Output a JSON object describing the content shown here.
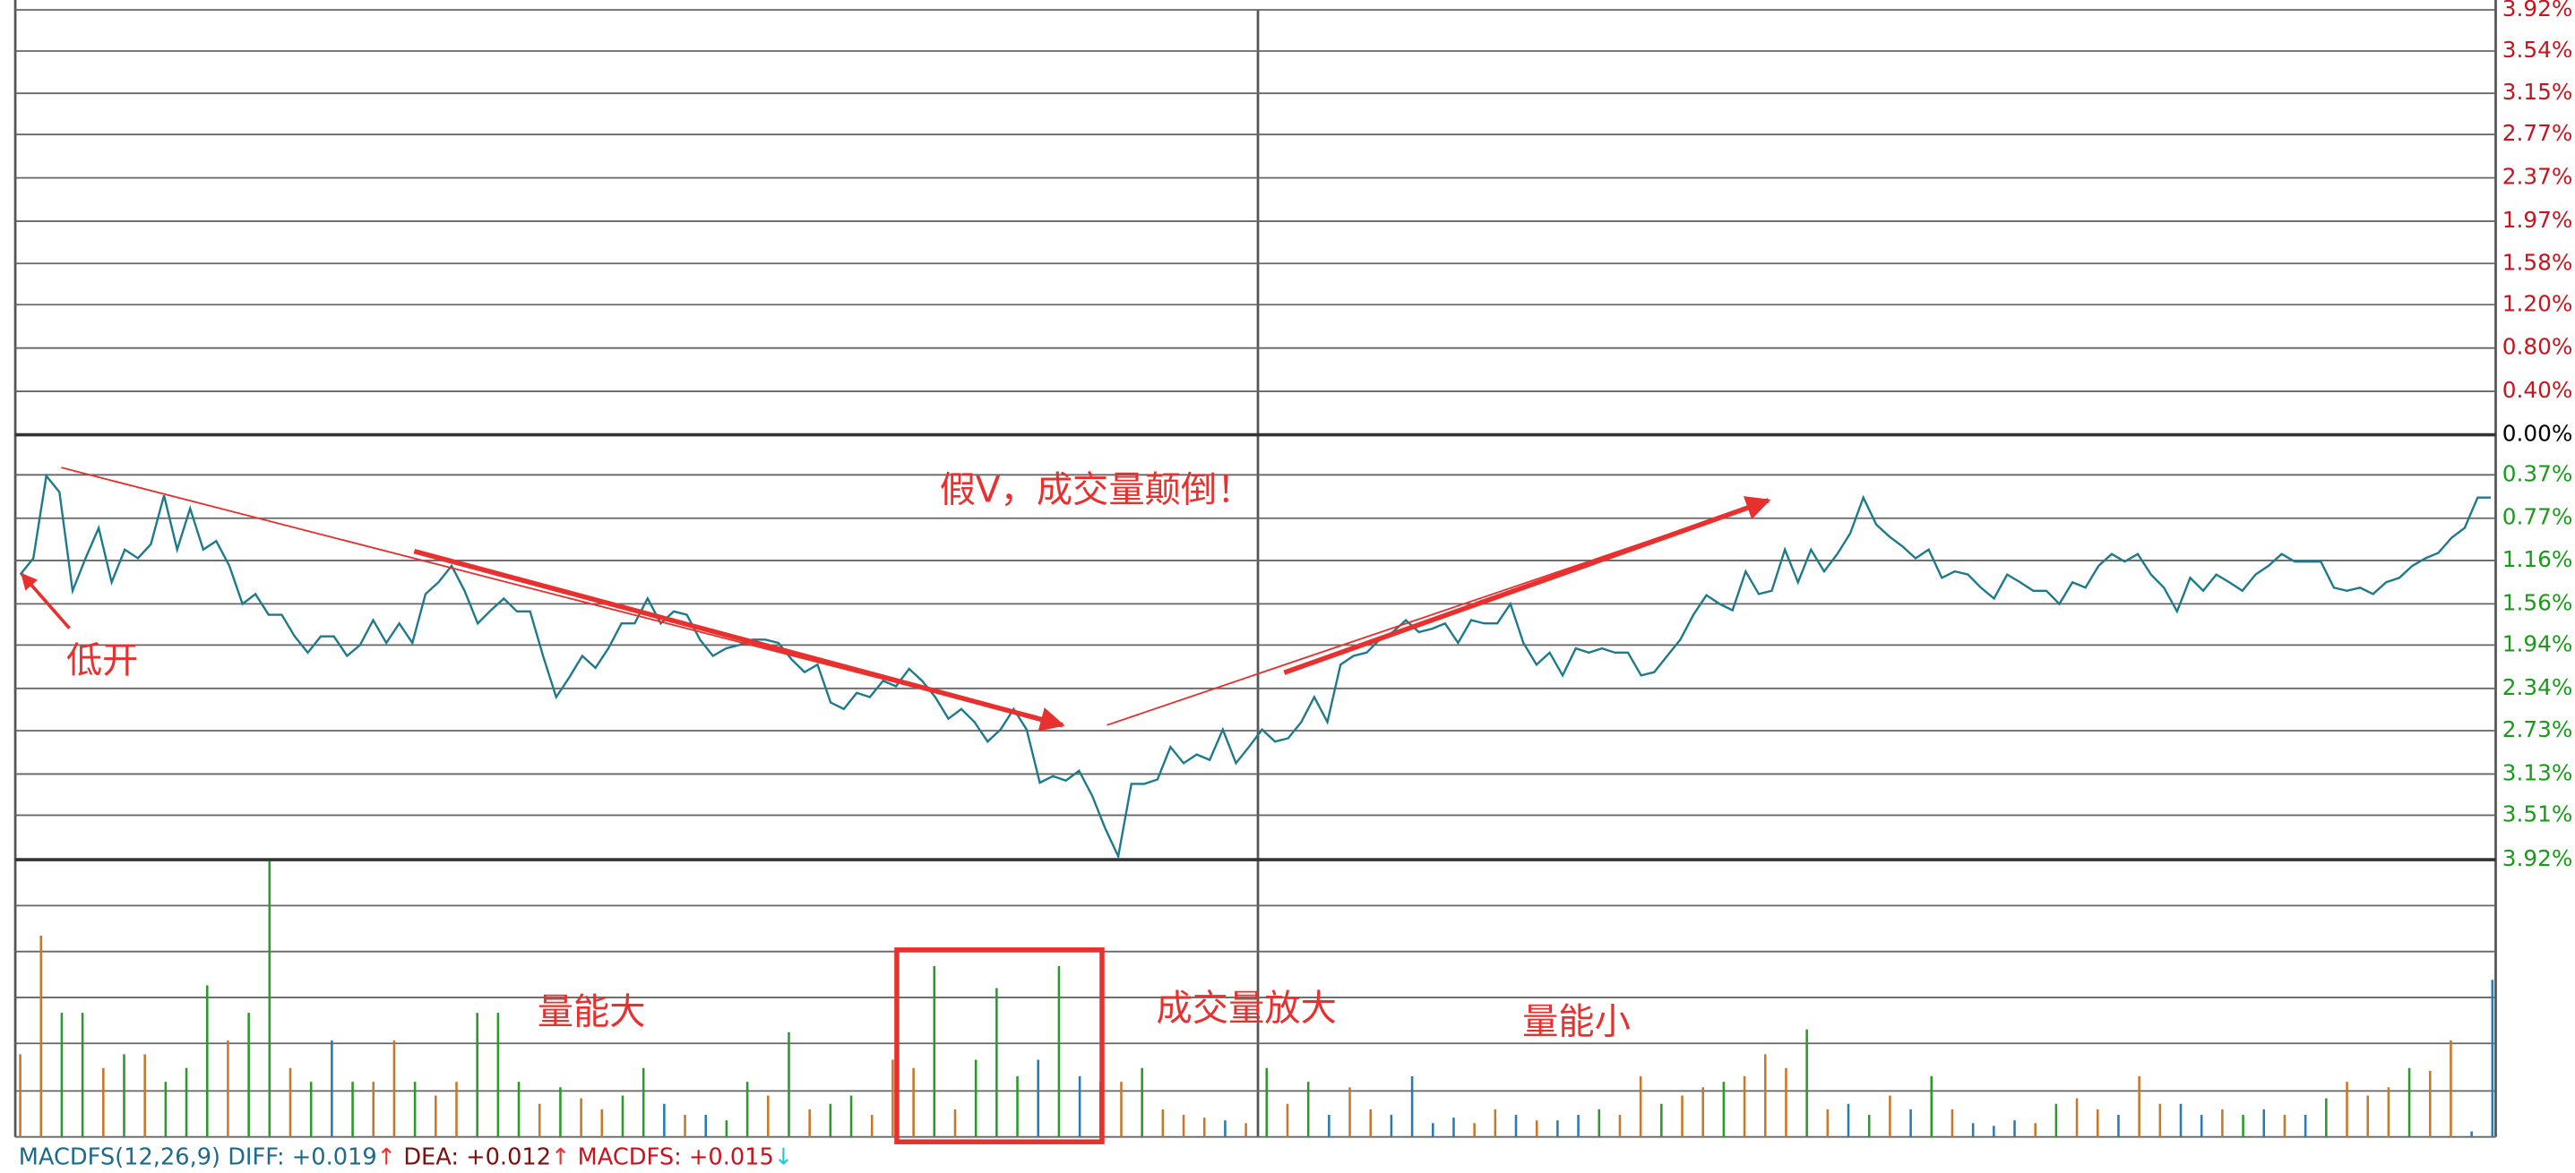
{
  "chart_data": {
    "type": "line",
    "ylim": [
      -3.92,
      3.92
    ],
    "yticks": [
      {
        "value": 3.92,
        "label": "3.92%"
      },
      {
        "value": 3.54,
        "label": "3.54%"
      },
      {
        "value": 3.15,
        "label": "3.15%"
      },
      {
        "value": 2.77,
        "label": "2.77%"
      },
      {
        "value": 2.37,
        "label": "2.37%"
      },
      {
        "value": 1.97,
        "label": "1.97%"
      },
      {
        "value": 1.58,
        "label": "1.58%"
      },
      {
        "value": 1.2,
        "label": "1.20%"
      },
      {
        "value": 0.8,
        "label": "0.80%"
      },
      {
        "value": 0.4,
        "label": "0.40%"
      },
      {
        "value": 0,
        "label": "0.00%"
      },
      {
        "value": -0.37,
        "label": "0.37%"
      },
      {
        "value": -0.77,
        "label": "0.77%"
      },
      {
        "value": -1.16,
        "label": "1.16%"
      },
      {
        "value": -1.56,
        "label": "1.56%"
      },
      {
        "value": -1.94,
        "label": "1.94%"
      },
      {
        "value": -2.34,
        "label": "2.34%"
      },
      {
        "value": -2.73,
        "label": "2.73%"
      },
      {
        "value": -3.13,
        "label": "3.13%"
      },
      {
        "value": -3.51,
        "label": "3.51%"
      },
      {
        "value": -3.92,
        "label": "3.92%"
      }
    ],
    "tick_colors": {
      "up": "#c8141e",
      "flat": "#000000",
      "down": "#1a9a1a"
    },
    "grid": true,
    "series": [
      {
        "color": "#1c7a8c",
        "values": [
          -1.29,
          -1.14,
          -0.38,
          -0.53,
          -1.44,
          -1.14,
          -0.86,
          -1.36,
          -1.06,
          -1.14,
          -1.01,
          -0.56,
          -1.06,
          -0.68,
          -1.06,
          -0.98,
          -1.21,
          -1.56,
          -1.47,
          -1.66,
          -1.66,
          -1.86,
          -2.01,
          -1.86,
          -1.86,
          -2.04,
          -1.94,
          -1.71,
          -1.92,
          -1.74,
          -1.92,
          -1.47,
          -1.36,
          -1.21,
          -1.44,
          -1.74,
          -1.62,
          -1.51,
          -1.63,
          -1.63,
          -2.04,
          -2.42,
          -2.24,
          -2.04,
          -2.15,
          -1.97,
          -1.74,
          -1.74,
          -1.51,
          -1.74,
          -1.63,
          -1.66,
          -1.89,
          -2.04,
          -1.97,
          -1.94,
          -1.89,
          -1.89,
          -1.92,
          -2.07,
          -2.19,
          -2.12,
          -2.47,
          -2.53,
          -2.38,
          -2.42,
          -2.27,
          -2.32,
          -2.16,
          -2.27,
          -2.42,
          -2.62,
          -2.53,
          -2.65,
          -2.83,
          -2.72,
          -2.53,
          -2.72,
          -3.21,
          -3.15,
          -3.19,
          -3.1,
          -3.33,
          -3.63,
          -3.89,
          -3.22,
          -3.22,
          -3.18,
          -2.88,
          -3.03,
          -2.95,
          -3.0,
          -2.72,
          -3.03,
          -2.88,
          -2.72,
          -2.83,
          -2.8,
          -2.65,
          -2.42,
          -2.65,
          -2.12,
          -2.04,
          -2.01,
          -1.89,
          -1.82,
          -1.71,
          -1.82,
          -1.79,
          -1.74,
          -1.92,
          -1.71,
          -1.74,
          -1.74,
          -1.56,
          -1.92,
          -2.12,
          -2.01,
          -2.22,
          -1.97,
          -2.01,
          -1.97,
          -2.01,
          -2.01,
          -2.22,
          -2.19,
          -2.04,
          -1.89,
          -1.66,
          -1.48,
          -1.56,
          -1.62,
          -1.26,
          -1.47,
          -1.44,
          -1.06,
          -1.36,
          -1.06,
          -1.26,
          -1.1,
          -0.91,
          -0.58,
          -0.83,
          -0.94,
          -1.03,
          -1.14,
          -1.06,
          -1.32,
          -1.26,
          -1.29,
          -1.41,
          -1.51,
          -1.29,
          -1.36,
          -1.44,
          -1.44,
          -1.56,
          -1.36,
          -1.41,
          -1.21,
          -1.1,
          -1.17,
          -1.1,
          -1.29,
          -1.41,
          -1.63,
          -1.32,
          -1.44,
          -1.29,
          -1.36,
          -1.44,
          -1.29,
          -1.21,
          -1.1,
          -1.17,
          -1.17,
          -1.17,
          -1.41,
          -1.44,
          -1.41,
          -1.47,
          -1.36,
          -1.32,
          -1.21,
          -1.14,
          -1.09,
          -0.95,
          -0.86,
          -0.58,
          -0.58
        ]
      }
    ],
    "volume": {
      "type": "bar",
      "ylim": [
        0,
        100
      ],
      "values": [
        30,
        73,
        45,
        45,
        25,
        30,
        30,
        20,
        25,
        55,
        35,
        45,
        100,
        25,
        20,
        35,
        20,
        20,
        35,
        20,
        15,
        20,
        45,
        45,
        20,
        12,
        18,
        14,
        10,
        15,
        25,
        12,
        8,
        8,
        6,
        20,
        15,
        38,
        10,
        12,
        15,
        8,
        28,
        25,
        62,
        10,
        28,
        54,
        22,
        28,
        62,
        22,
        20,
        20,
        25,
        10,
        8,
        7,
        6,
        5,
        25,
        12,
        20,
        8,
        18,
        10,
        8,
        22,
        5,
        7,
        5,
        10,
        8,
        6,
        6,
        8,
        10,
        8,
        22,
        12,
        15,
        18,
        20,
        22,
        30,
        25,
        39,
        10,
        12,
        8,
        15,
        10,
        22,
        10,
        5,
        4,
        6,
        5,
        12,
        14,
        10,
        8,
        22,
        12,
        12,
        8,
        10,
        8,
        10,
        8,
        8,
        14,
        20,
        15,
        18,
        25,
        24,
        35,
        2,
        57
      ],
      "colors": [
        "#c8782a",
        "#c8782a",
        "#2a9a2a",
        "#2a9a2a",
        "#c8782a",
        "#2a9a2a",
        "#c8782a",
        "#2a9a2a",
        "#2a9a2a",
        "#2a9a2a",
        "#c8782a",
        "#2a9a2a",
        "#2a9a2a",
        "#c8782a",
        "#2a9a2a",
        "#2a7ab4",
        "#2a9a2a",
        "#c8782a",
        "#c8782a",
        "#2a9a2a",
        "#c8782a",
        "#c8782a",
        "#2a9a2a",
        "#2a9a2a",
        "#2a9a2a",
        "#c8782a",
        "#2a9a2a",
        "#c8782a",
        "#c8782a",
        "#2a9a2a",
        "#2a9a2a",
        "#2a7ab4",
        "#c8782a",
        "#2a7ab4",
        "#2a9a2a",
        "#2a9a2a",
        "#c8782a",
        "#2a9a2a",
        "#c8782a",
        "#2a9a2a",
        "#2a9a2a",
        "#c8782a",
        "#c8782a",
        "#c8782a",
        "#2a9a2a",
        "#c8782a",
        "#2a9a2a",
        "#2a9a2a",
        "#2a9a2a",
        "#2a7ab4",
        "#2a9a2a",
        "#2a7ab4",
        "#2a7ab4",
        "#c8782a",
        "#2a9a2a",
        "#c8782a",
        "#c8782a",
        "#c8782a",
        "#2a7ab4",
        "#c8782a",
        "#2a9a2a",
        "#c8782a",
        "#2a9a2a",
        "#2a7ab4",
        "#c8782a",
        "#c8782a",
        "#2a7ab4",
        "#2a7ab4",
        "#2a7ab4",
        "#2a7ab4",
        "#c8782a",
        "#c8782a",
        "#2a7ab4",
        "#c8782a",
        "#2a7ab4",
        "#2a7ab4",
        "#2a9a2a",
        "#c8782a",
        "#c8782a",
        "#2a9a2a",
        "#c8782a",
        "#c8782a",
        "#2a9a2a",
        "#c8782a",
        "#c8782a",
        "#c8782a",
        "#2a9a2a",
        "#c8782a",
        "#2a7ab4",
        "#2a9a2a",
        "#c8782a",
        "#2a7ab4",
        "#2a9a2a",
        "#c8782a",
        "#2a7ab4",
        "#2a7ab4",
        "#2a7ab4",
        "#c8782a",
        "#2a9a2a",
        "#c8782a",
        "#c8782a",
        "#2a7ab4",
        "#c8782a",
        "#c8782a",
        "#2a7ab4",
        "#2a7ab4",
        "#c8782a",
        "#2a9a2a",
        "#2a7ab4",
        "#c8782a",
        "#2a7ab4",
        "#2a9a2a",
        "#c8782a",
        "#c8782a",
        "#c8782a",
        "#2a9a2a",
        "#c8782a",
        "#c8782a",
        "#2a7ab4",
        "#2a7ab4"
      ]
    },
    "annotations": [
      "低开",
      "假V，成交量颠倒！",
      "量能大",
      "成交量放大",
      "量能小"
    ],
    "indicator": [
      {
        "text": "MACDFS(12,26,9)",
        "color": "#1c6a8c"
      },
      {
        "text": " DIFF: +0.019",
        "color": "#1c6a8c"
      },
      {
        "text": "↑",
        "color": "#e8302e"
      },
      {
        "text": " DEA: +0.012",
        "color": "#7a1010"
      },
      {
        "text": "↑",
        "color": "#e8302e"
      },
      {
        "text": " MACDFS: +0.015",
        "color": "#c8141e"
      },
      {
        "text": "↓",
        "color": "#20c8d8"
      }
    ]
  }
}
